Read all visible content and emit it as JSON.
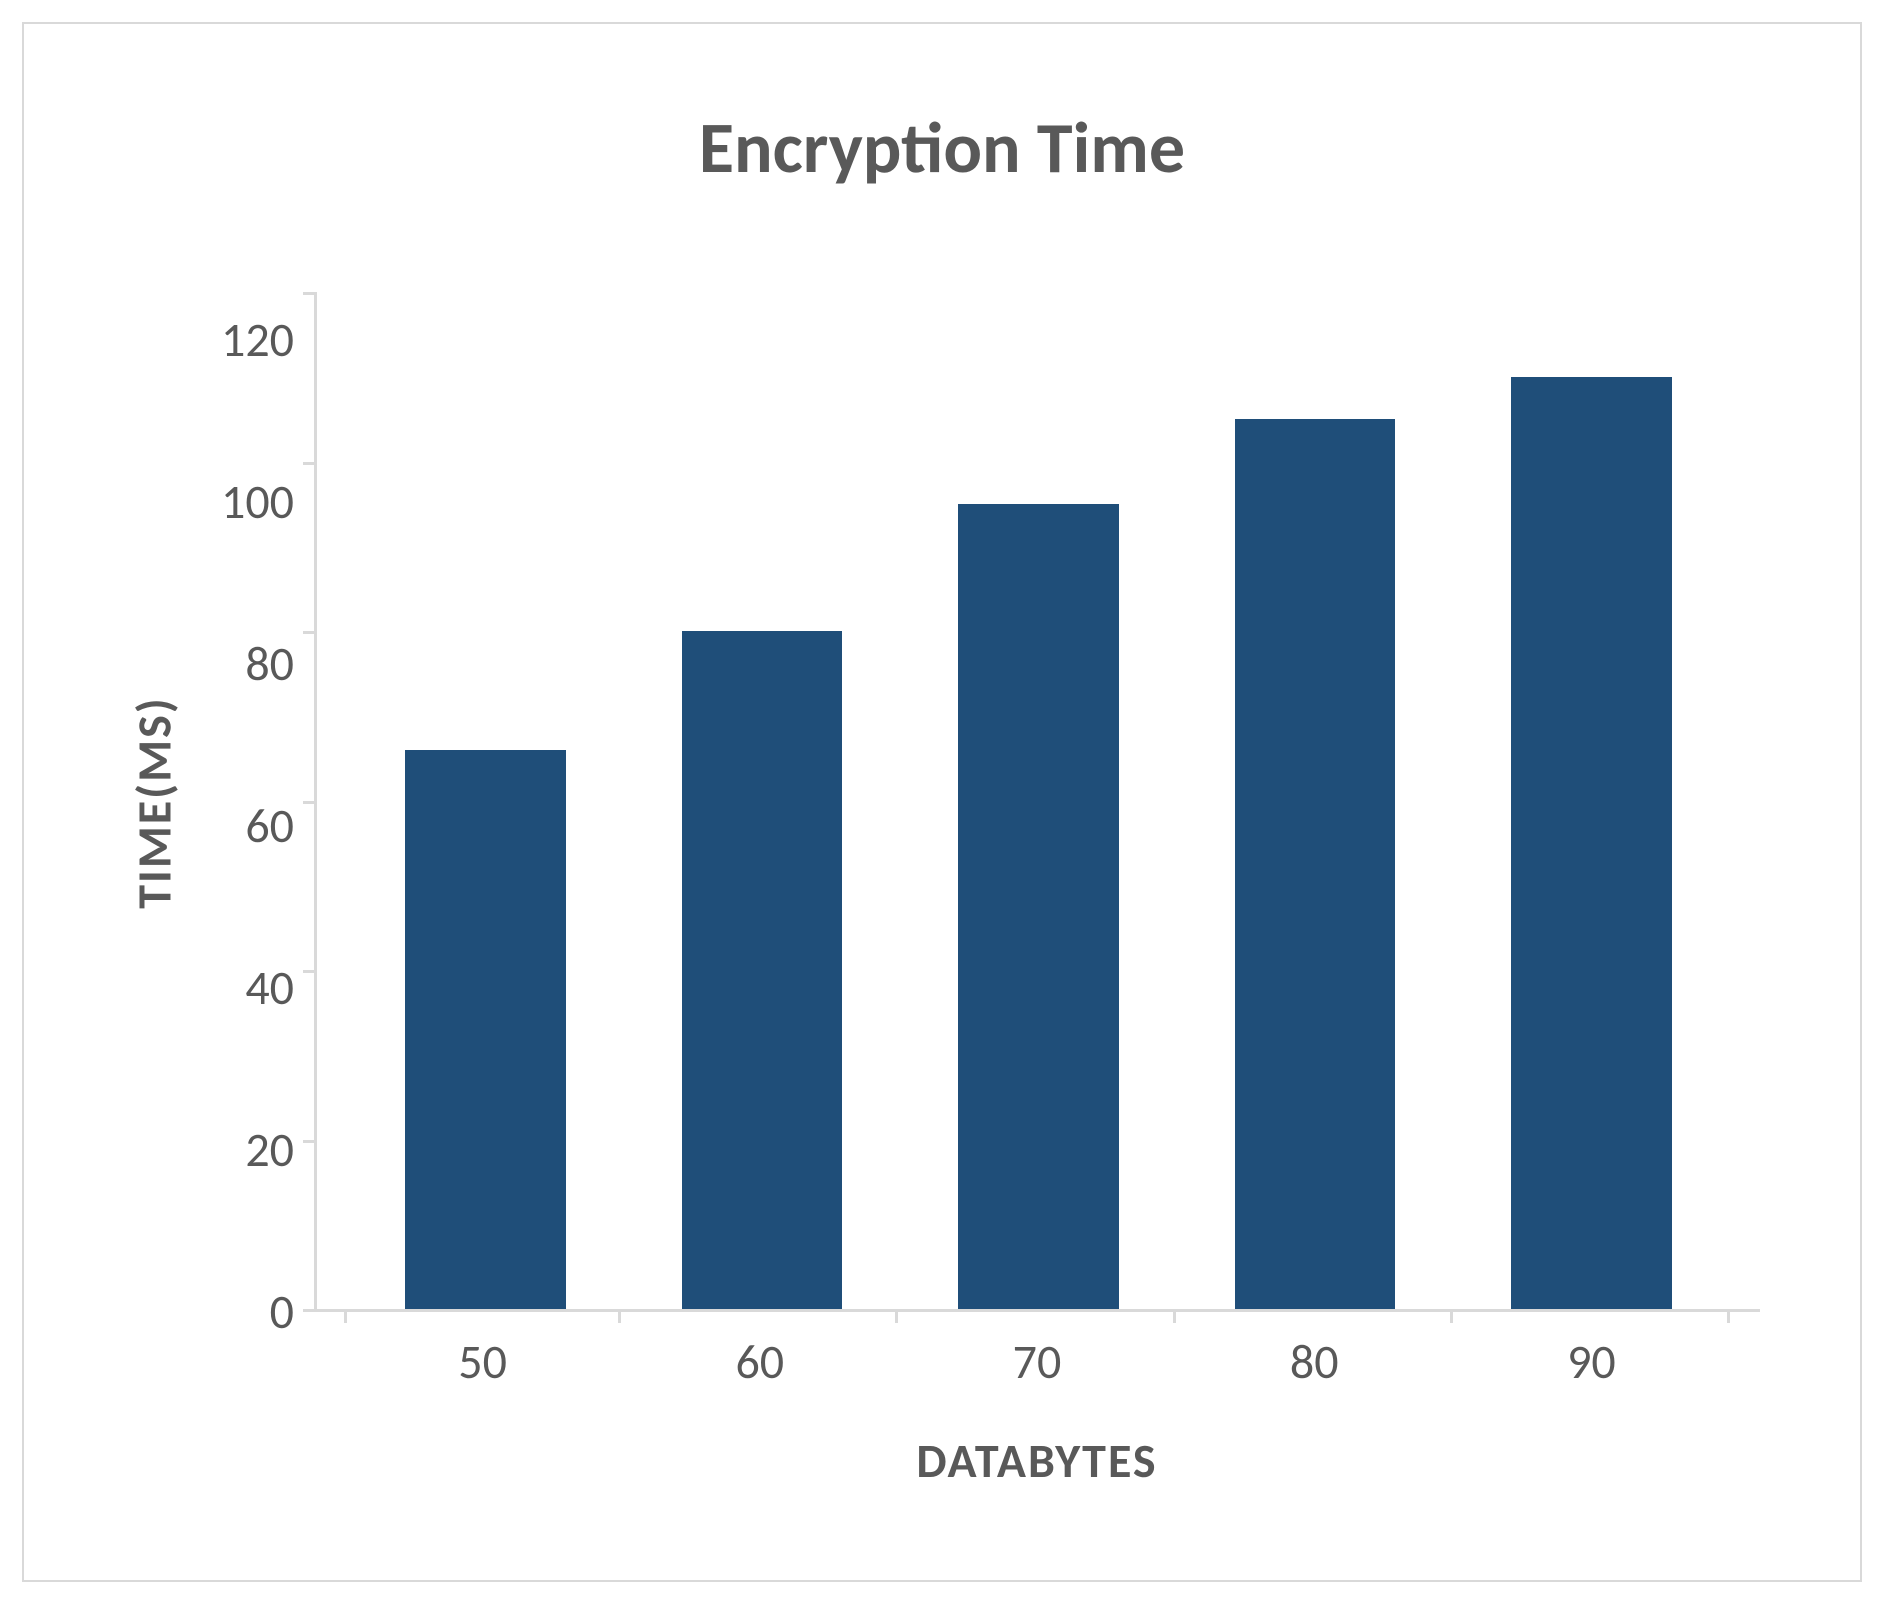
{
  "chart": {
    "type": "bar",
    "title": "Encryption Time",
    "title_fontsize": 72,
    "title_color": "#595959",
    "x_axis_label": "DATABYTES",
    "y_axis_label": "TIME(MS)",
    "axis_label_fontsize": 48,
    "axis_label_color": "#595959",
    "tick_fontsize": 48,
    "tick_color": "#595959",
    "categories": [
      "50",
      "60",
      "70",
      "80",
      "90"
    ],
    "values": [
      66,
      80,
      95,
      105,
      110
    ],
    "bar_color": "#1f4e79",
    "bar_width": 0.58,
    "ylim": [
      0,
      120
    ],
    "ytick_step": 20,
    "yticks": [
      "120",
      "100",
      "80",
      "60",
      "40",
      "20",
      "0"
    ],
    "background_color": "#ffffff",
    "border_color": "#d9d9d9",
    "axis_line_color": "#d9d9d9",
    "grid": false
  }
}
